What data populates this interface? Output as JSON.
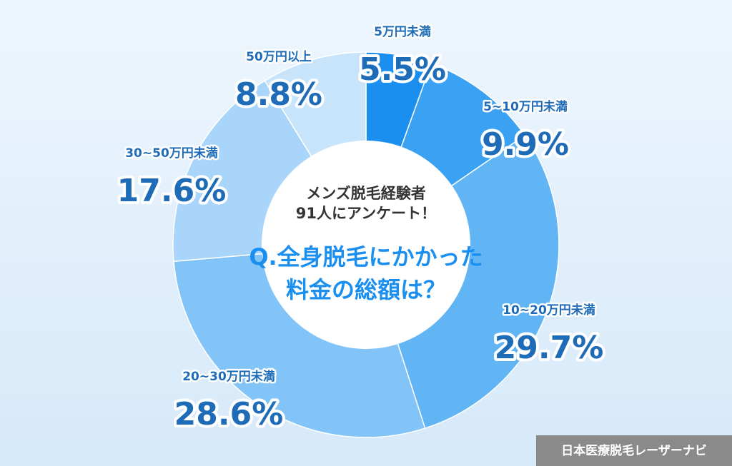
{
  "chart_data": {
    "type": "donut",
    "categories": [
      "5万円未満",
      "5~10万円未満",
      "10~20万円未満",
      "20~30万円未満",
      "30~50万円未満",
      "50万円以上"
    ],
    "values": [
      5.5,
      9.9,
      29.7,
      28.6,
      17.6,
      8.8
    ],
    "value_labels": [
      "5.5%",
      "9.9%",
      "29.7%",
      "28.6%",
      "17.6%",
      "8.8%"
    ],
    "colors": [
      "#1a8ff0",
      "#3aa1f3",
      "#62b5f5",
      "#82c4f8",
      "#a8d5f9",
      "#c8e4fb"
    ],
    "center_text": [
      "メンズ脱毛経験者",
      "91人にアンケート！"
    ],
    "question": [
      "Q.全身脱毛にかかった",
      "料金の総額は？"
    ],
    "credit": "日本医療脱毛レーザーナビ"
  }
}
